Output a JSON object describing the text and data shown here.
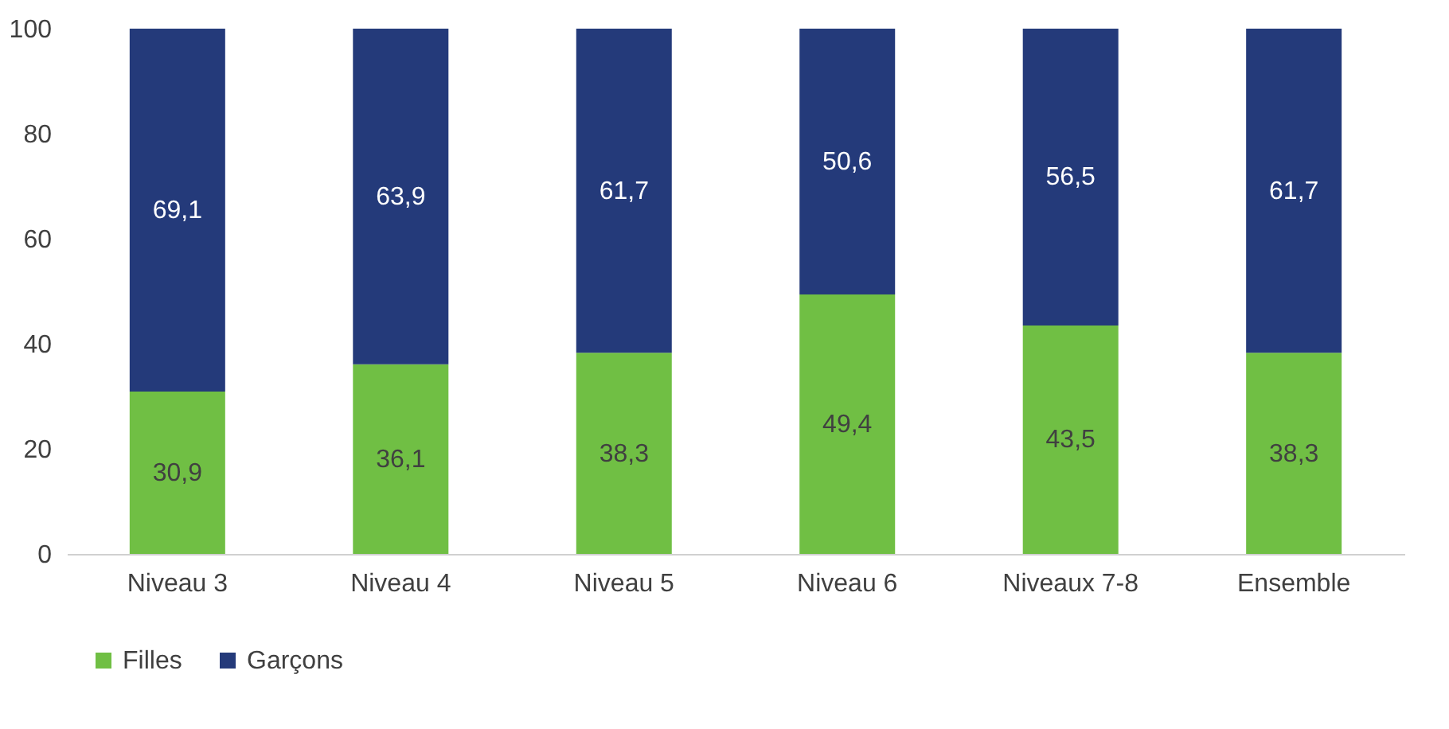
{
  "chart_data": {
    "type": "bar",
    "stacked": true,
    "categories": [
      "Niveau 3",
      "Niveau 4",
      "Niveau 5",
      "Niveau 6",
      "Niveaux 7-8",
      "Ensemble"
    ],
    "series": [
      {
        "name": "Filles",
        "color": "#70bf44",
        "values": [
          30.9,
          36.1,
          38.3,
          49.4,
          43.5,
          38.3
        ],
        "value_labels": [
          "30,9",
          "36,1",
          "38,3",
          "49,4",
          "43,5",
          "38,3"
        ]
      },
      {
        "name": "Garçons",
        "color": "#243a7a",
        "values": [
          69.1,
          63.9,
          61.7,
          50.6,
          56.5,
          61.7
        ],
        "value_labels": [
          "69,1",
          "63,9",
          "61,7",
          "50,6",
          "56,5",
          "61,7"
        ]
      }
    ],
    "ylim": [
      0,
      100
    ],
    "yticks": [
      0,
      20,
      40,
      60,
      80,
      100
    ],
    "grid": false,
    "legend": "bottom"
  }
}
